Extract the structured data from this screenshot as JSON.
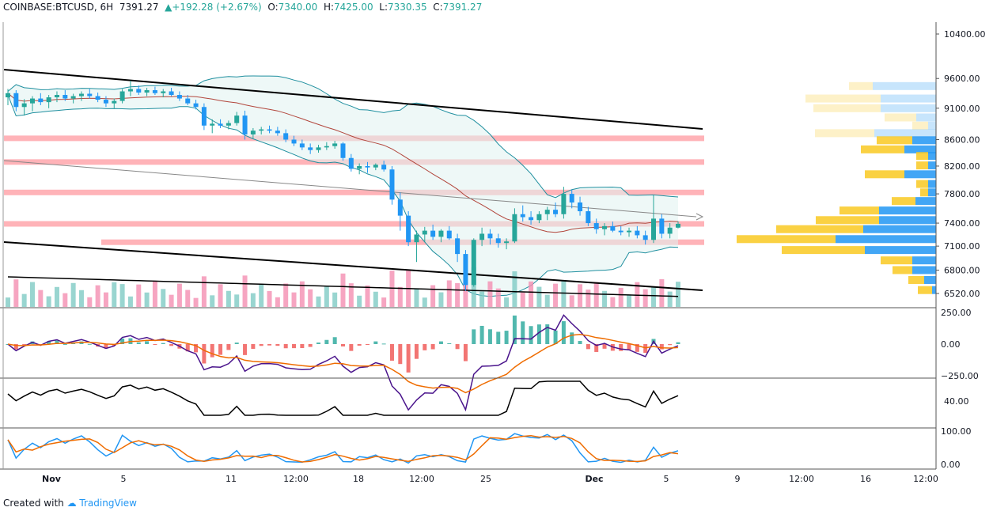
{
  "header": {
    "symbol": "COINBASE:BTCUSD, 6H",
    "last": "7391.27",
    "change": "+192.28 (+2.67%)",
    "o_label": "O:",
    "o": "7340.00",
    "h_label": "H:",
    "h": "7425.00",
    "l_label": "L:",
    "l": "7330.35",
    "c_label": "C:",
    "c": "7391.27"
  },
  "footer": {
    "created_with": "Created with",
    "brand": "TradingView"
  },
  "colors": {
    "up": "#26a69a",
    "down": "#2196f3",
    "ma": "#b2463c",
    "band": "#1f8f9f",
    "trend": "#000000",
    "sr": "#ffb3b8",
    "vp_up": "#f9c922",
    "vp_down": "#2196f3",
    "macd": "#4a148c",
    "signal": "#ef6c00",
    "stoch_k": "#2196f3",
    "stoch_d": "#ef6c00"
  },
  "chart_data": {
    "type": "candlestick",
    "price_axis": {
      "ticks": [
        10400,
        9600,
        9100,
        8600,
        8200,
        7800,
        7400,
        7100,
        6800,
        6520
      ],
      "labels": [
        "10400.00",
        "9600.00",
        "9100.00",
        "8600.00",
        "8200.00",
        "7800.00",
        "7400.00",
        "7100.00",
        "6800.00",
        "6520.00"
      ],
      "log_scale": true
    },
    "time_axis": {
      "labels": [
        "Nov",
        "5",
        "11",
        "12:00",
        "18",
        "12:00",
        "25",
        "Dec",
        "5",
        "9",
        "12:00",
        "16",
        "12:00"
      ],
      "bold": [
        true,
        false,
        false,
        false,
        false,
        false,
        false,
        true,
        false,
        false,
        false,
        false,
        false
      ]
    },
    "candles": [
      [
        9280,
        9420,
        9150,
        9350
      ],
      [
        9350,
        9400,
        9050,
        9120
      ],
      [
        9120,
        9250,
        8980,
        9180
      ],
      [
        9180,
        9300,
        9050,
        9260
      ],
      [
        9260,
        9350,
        9150,
        9200
      ],
      [
        9200,
        9320,
        9100,
        9280
      ],
      [
        9280,
        9380,
        9200,
        9320
      ],
      [
        9320,
        9400,
        9220,
        9260
      ],
      [
        9260,
        9340,
        9180,
        9300
      ],
      [
        9300,
        9380,
        9220,
        9340
      ],
      [
        9340,
        9420,
        9260,
        9300
      ],
      [
        9300,
        9360,
        9200,
        9240
      ],
      [
        9240,
        9300,
        9120,
        9180
      ],
      [
        9180,
        9260,
        9100,
        9220
      ],
      [
        9220,
        9420,
        9180,
        9380
      ],
      [
        9380,
        9560,
        9300,
        9420
      ],
      [
        9420,
        9480,
        9320,
        9360
      ],
      [
        9360,
        9440,
        9300,
        9400
      ],
      [
        9400,
        9460,
        9320,
        9350
      ],
      [
        9350,
        9420,
        9280,
        9380
      ],
      [
        9380,
        9440,
        9300,
        9320
      ],
      [
        9320,
        9380,
        9220,
        9260
      ],
      [
        9260,
        9320,
        9150,
        9180
      ],
      [
        9180,
        9240,
        9080,
        9120
      ],
      [
        9120,
        9180,
        8750,
        8820
      ],
      [
        8820,
        8920,
        8700,
        8850
      ],
      [
        8850,
        8920,
        8780,
        8820
      ],
      [
        8820,
        8900,
        8760,
        8860
      ],
      [
        8860,
        9040,
        8820,
        8980
      ],
      [
        8980,
        9060,
        8600,
        8680
      ],
      [
        8680,
        8780,
        8620,
        8740
      ],
      [
        8740,
        8800,
        8680,
        8760
      ],
      [
        8760,
        8820,
        8700,
        8740
      ],
      [
        8740,
        8800,
        8660,
        8700
      ],
      [
        8700,
        8760,
        8560,
        8600
      ],
      [
        8600,
        8660,
        8500,
        8540
      ],
      [
        8540,
        8600,
        8440,
        8480
      ],
      [
        8480,
        8540,
        8380,
        8440
      ],
      [
        8440,
        8520,
        8400,
        8480
      ],
      [
        8480,
        8560,
        8440,
        8500
      ],
      [
        8500,
        8580,
        8460,
        8540
      ],
      [
        8540,
        8560,
        8280,
        8320
      ],
      [
        8320,
        8380,
        8120,
        8160
      ],
      [
        8160,
        8240,
        8080,
        8200
      ],
      [
        8200,
        8260,
        8100,
        8180
      ],
      [
        8180,
        8240,
        8140,
        8220
      ],
      [
        8220,
        8280,
        8120,
        8150
      ],
      [
        8150,
        8200,
        7650,
        7720
      ],
      [
        7720,
        7820,
        7300,
        7500
      ],
      [
        7500,
        7560,
        7100,
        7150
      ],
      [
        7150,
        7300,
        6900,
        7250
      ],
      [
        7250,
        7350,
        7150,
        7300
      ],
      [
        7300,
        7380,
        7180,
        7220
      ],
      [
        7220,
        7320,
        7150,
        7300
      ],
      [
        7300,
        7360,
        7180,
        7200
      ],
      [
        7200,
        7260,
        6900,
        7000
      ],
      [
        7000,
        7050,
        6550,
        6620
      ],
      [
        6620,
        7200,
        6600,
        7180
      ],
      [
        7180,
        7340,
        7100,
        7260
      ],
      [
        7260,
        7320,
        7120,
        7200
      ],
      [
        7200,
        7260,
        7080,
        7140
      ],
      [
        7140,
        7200,
        7060,
        7160
      ],
      [
        7160,
        7600,
        7140,
        7520
      ],
      [
        7520,
        7640,
        7420,
        7480
      ],
      [
        7480,
        7560,
        7380,
        7440
      ],
      [
        7440,
        7560,
        7400,
        7520
      ],
      [
        7520,
        7620,
        7440,
        7580
      ],
      [
        7580,
        7680,
        7480,
        7520
      ],
      [
        7520,
        7900,
        7460,
        7800
      ],
      [
        7800,
        7860,
        7600,
        7680
      ],
      [
        7680,
        7760,
        7500,
        7560
      ],
      [
        7560,
        7620,
        7360,
        7400
      ],
      [
        7400,
        7460,
        7260,
        7320
      ],
      [
        7320,
        7400,
        7240,
        7360
      ],
      [
        7360,
        7420,
        7280,
        7300
      ],
      [
        7300,
        7360,
        7240,
        7280
      ],
      [
        7280,
        7340,
        7220,
        7300
      ],
      [
        7300,
        7360,
        7200,
        7240
      ],
      [
        7240,
        7300,
        7120,
        7180
      ],
      [
        7180,
        7780,
        7140,
        7460
      ],
      [
        7460,
        7520,
        7200,
        7260
      ],
      [
        7260,
        7400,
        7200,
        7340
      ],
      [
        7340,
        7425,
        7330,
        7391
      ]
    ],
    "sr_zones": [
      8620,
      8260,
      7820,
      7390,
      7150
    ],
    "volume_profile": [
      {
        "price": 9470,
        "up": 30,
        "down": 80
      },
      {
        "price": 9260,
        "up": 95,
        "down": 70
      },
      {
        "price": 9100,
        "up": 85,
        "down": 70
      },
      {
        "price": 8950,
        "up": 40,
        "down": 25
      },
      {
        "price": 8820,
        "up": 20,
        "down": 10
      },
      {
        "price": 8700,
        "up": 75,
        "down": 78
      },
      {
        "price": 8590,
        "up": 45,
        "down": 30
      },
      {
        "price": 8450,
        "up": 55,
        "down": 40
      },
      {
        "price": 8350,
        "up": 15,
        "down": 10
      },
      {
        "price": 8210,
        "up": 15,
        "down": 10
      },
      {
        "price": 8080,
        "up": 50,
        "down": 40
      },
      {
        "price": 7940,
        "up": 15,
        "down": 10
      },
      {
        "price": 7820,
        "up": 10,
        "down": 10
      },
      {
        "price": 7700,
        "up": 30,
        "down": 26
      },
      {
        "price": 7570,
        "up": 50,
        "down": 72
      },
      {
        "price": 7440,
        "up": 80,
        "down": 72
      },
      {
        "price": 7320,
        "up": 110,
        "down": 92
      },
      {
        "price": 7190,
        "up": 125,
        "down": 127
      },
      {
        "price": 7050,
        "up": 105,
        "down": 90
      },
      {
        "price": 6920,
        "up": 40,
        "down": 30
      },
      {
        "price": 6800,
        "up": 25,
        "down": 30
      },
      {
        "price": 6680,
        "up": 20,
        "down": 15
      },
      {
        "price": 6560,
        "up": 18,
        "down": 5
      }
    ],
    "macd_axis": {
      "ticks": [
        250,
        0,
        -250
      ],
      "labels": [
        "250.00",
        "0.00",
        "−250.00"
      ]
    },
    "rsi_axis": {
      "ticks": [
        40
      ],
      "labels": [
        "40.00"
      ]
    },
    "stoch_axis": {
      "ticks": [
        100,
        0
      ],
      "labels": [
        "100.00",
        "0.00"
      ]
    }
  }
}
